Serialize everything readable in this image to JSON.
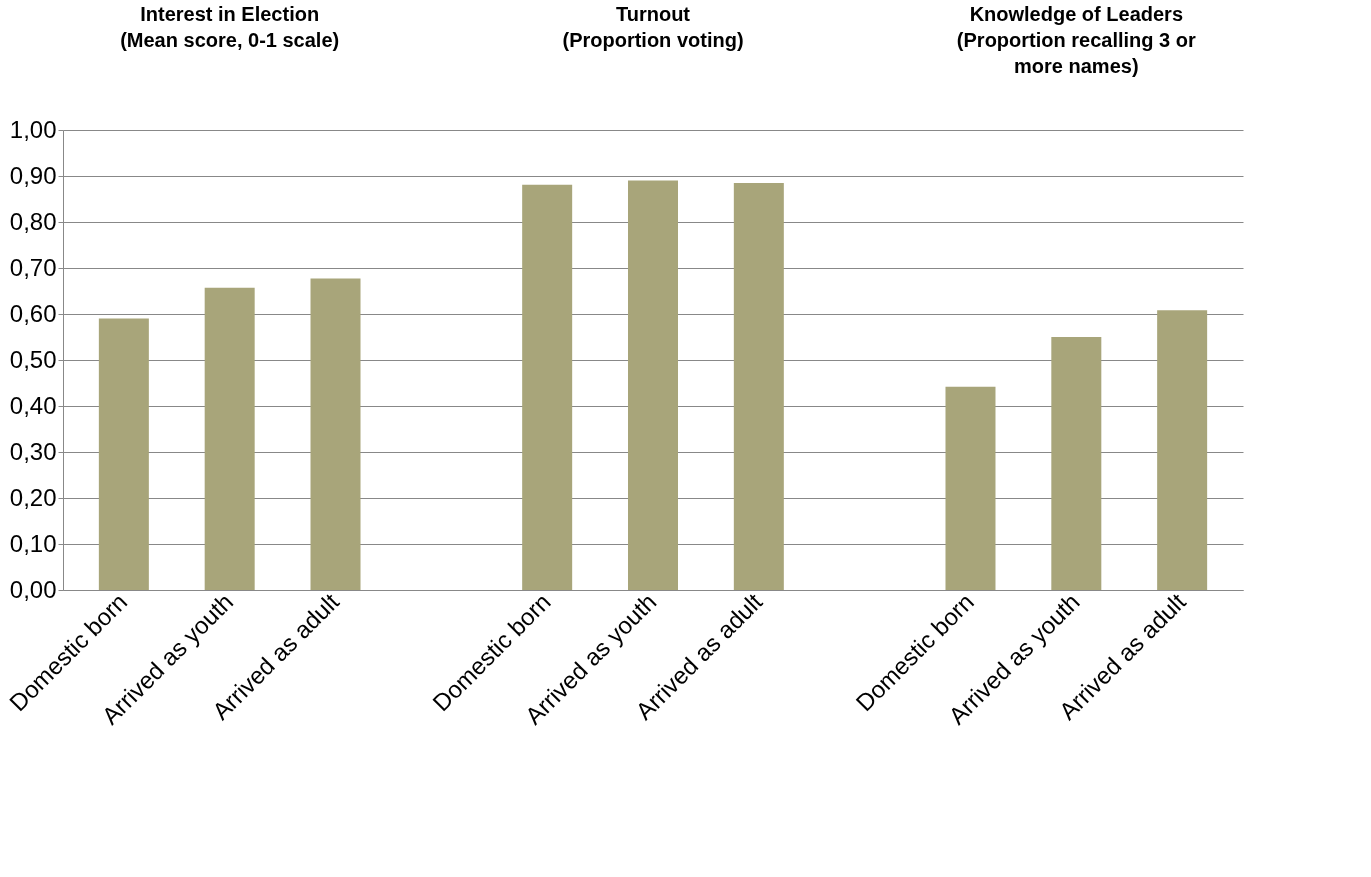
{
  "chart_data": {
    "type": "bar",
    "categories": [
      "Domestic born",
      "Arrived as youth",
      "Arrived as adult",
      null,
      "Domestic born",
      "Arrived as youth",
      "Arrived as adult",
      null,
      "Domestic born",
      "Arrived as youth",
      "Arrived as adult"
    ],
    "values": [
      0.59,
      0.657,
      0.677,
      null,
      0.881,
      0.89,
      0.885,
      null,
      0.442,
      0.55,
      0.608
    ],
    "color": "#a8a57a",
    "ylim": [
      0,
      1
    ],
    "yticks": [
      {
        "value": 0,
        "label": "0,00"
      },
      {
        "value": 0.1,
        "label": "0,10"
      },
      {
        "value": 0.2,
        "label": "0,20"
      },
      {
        "value": 0.3,
        "label": "0,30"
      },
      {
        "value": 0.4,
        "label": "0,40"
      },
      {
        "value": 0.5,
        "label": "0,50"
      },
      {
        "value": 0.6,
        "label": "0,60"
      },
      {
        "value": 0.7,
        "label": "0,70"
      },
      {
        "value": 0.8,
        "label": "0,80"
      },
      {
        "value": 0.9,
        "label": "0,90"
      },
      {
        "value": 1,
        "label": "1,00"
      }
    ],
    "grid": "y",
    "annotations": [
      "Interest in Election\n(Mean score, 0-1 scale)",
      "Turnout\n(Proportion voting)",
      "Knowledge of Leaders\n(Proportion recalling 3 or\nmore names)"
    ]
  }
}
